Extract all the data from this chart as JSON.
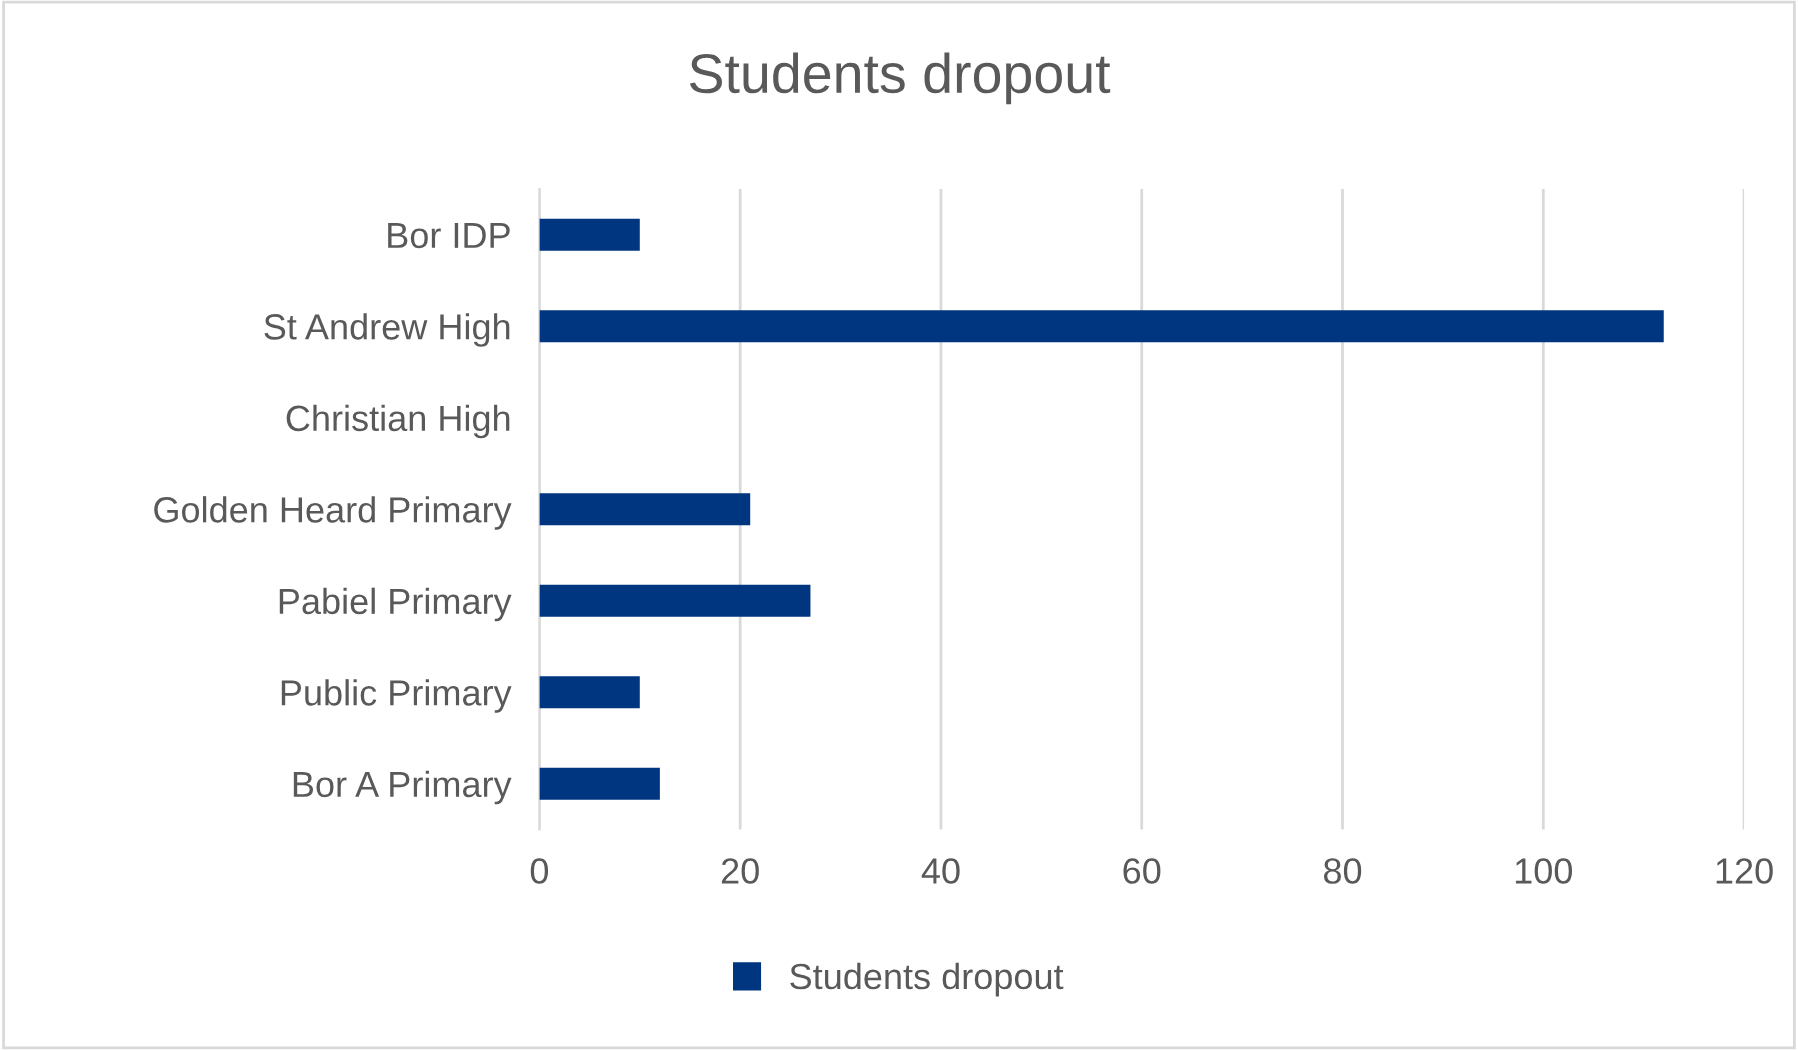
{
  "chart_data": {
    "type": "bar",
    "orientation": "horizontal",
    "title": "Students dropout",
    "categories": [
      "Bor IDP",
      "St Andrew High",
      "Christian High",
      "Golden Heard Primary",
      "Pabiel Primary",
      "Public Primary",
      "Bor A Primary"
    ],
    "series": [
      {
        "name": "Students dropout",
        "color": "#003580",
        "values": [
          10,
          112,
          0,
          21,
          27,
          10,
          12
        ]
      }
    ],
    "xlim": [
      0,
      120
    ],
    "xticks": [
      0,
      20,
      40,
      60,
      80,
      100,
      120
    ],
    "grid": "x",
    "legend": "bottom"
  }
}
